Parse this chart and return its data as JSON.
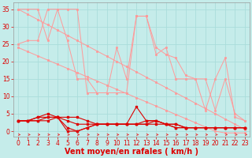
{
  "background_color": "#c5ecea",
  "grid_color": "#aadddb",
  "line_color_dark": "#dd0000",
  "line_color_light": "#ff9999",
  "xlabel": "Vent moyen/en rafales ( km/h )",
  "xlabel_fontsize": 7,
  "tick_fontsize": 5.5,
  "ylim": [
    -1.5,
    37
  ],
  "xlim": [
    -0.5,
    23.5
  ],
  "yticks": [
    0,
    5,
    10,
    15,
    20,
    25,
    30,
    35
  ],
  "xticks": [
    0,
    1,
    2,
    3,
    4,
    5,
    6,
    7,
    8,
    9,
    10,
    11,
    12,
    13,
    14,
    15,
    16,
    17,
    18,
    19,
    20,
    21,
    22,
    23
  ],
  "series_light_zigzag1": [
    25,
    26,
    26,
    35,
    35,
    26,
    15,
    15,
    11,
    11,
    24,
    15,
    33,
    33,
    24,
    22,
    21,
    16,
    15,
    6,
    15,
    21,
    4,
    3
  ],
  "series_light_zigzag2": [
    35,
    35,
    35,
    26,
    35,
    35,
    35,
    11,
    11,
    11,
    11,
    11,
    33,
    33,
    22,
    24,
    15,
    15,
    15,
    15,
    6,
    15,
    5,
    3
  ],
  "series_light_diagonal1": [
    24,
    22.8,
    21.6,
    20.4,
    19.2,
    18,
    16.8,
    15.6,
    14.4,
    13.2,
    12,
    10.8,
    9.6,
    8.4,
    7.2,
    6,
    4.8,
    3.6,
    2.4,
    1.2,
    0,
    -0.5,
    -0.5,
    -0.5
  ],
  "series_light_diagonal2": [
    35,
    33.5,
    32,
    30.5,
    29,
    27.5,
    26,
    24.5,
    23,
    21.5,
    20,
    18.5,
    17,
    15.5,
    14,
    12.5,
    11,
    9.5,
    8,
    6.5,
    5,
    3.5,
    2,
    0.5
  ],
  "series_dark1": [
    3,
    3,
    4,
    4,
    4,
    3,
    2,
    2,
    2,
    2,
    2,
    2,
    2,
    3,
    3,
    2,
    2,
    1,
    1,
    1,
    1,
    1,
    1,
    1
  ],
  "series_dark2": [
    3,
    3,
    3,
    4,
    4,
    1,
    0,
    1,
    2,
    2,
    2,
    2,
    7,
    3,
    3,
    2,
    1,
    1,
    1,
    1,
    1,
    1,
    1,
    1
  ],
  "series_dark3": [
    3,
    3,
    3,
    3,
    4,
    4,
    4,
    3,
    2,
    2,
    2,
    2,
    2,
    2,
    2,
    2,
    2,
    1,
    1,
    1,
    1,
    1,
    1,
    1
  ],
  "series_dark4": [
    3,
    3,
    4,
    5,
    4,
    0,
    0,
    1,
    2,
    2,
    2,
    2,
    2,
    2,
    3,
    2,
    1,
    1,
    1,
    1,
    1,
    1,
    1,
    1
  ],
  "arrow_color": "#ee3333"
}
